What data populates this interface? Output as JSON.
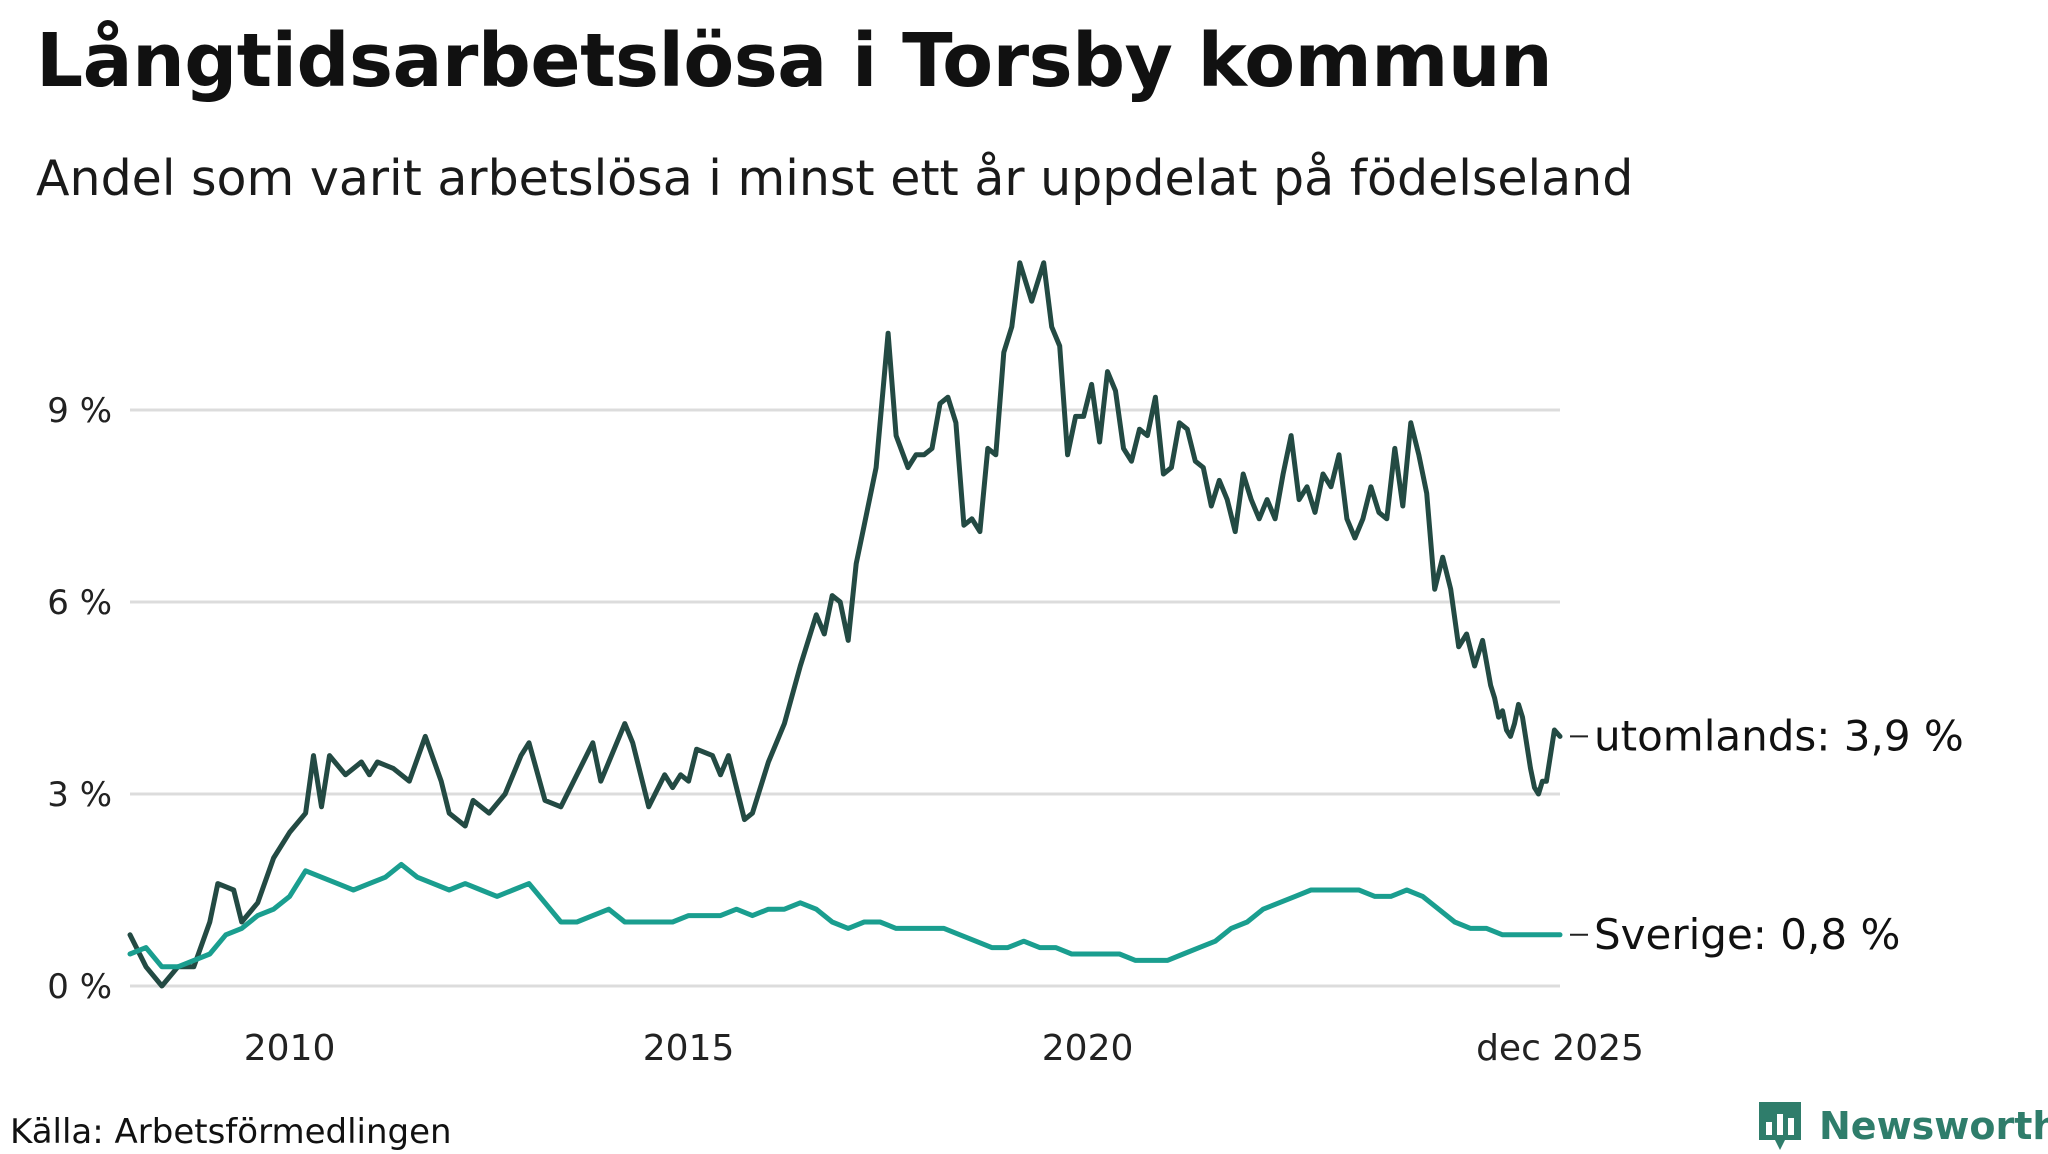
{
  "title": "Långtidsarbetslösa i Torsby kommun",
  "subtitle": "Andel som varit arbetslösa i minst ett år uppdelat på födelseland",
  "source": "Källa: Arbetsförmedlingen",
  "brand": "Newsworthy",
  "colors": {
    "utomlands": "#234a43",
    "sverige": "#1a9e8f",
    "grid": "#dcdcdc",
    "brand": "#2f7d6b"
  },
  "chart_data": {
    "type": "line",
    "title": "Långtidsarbetslösa i Torsby kommun",
    "ylabel": "",
    "xlabel": "",
    "ylim": [
      0,
      11.5
    ],
    "xlim": [
      2008.0,
      2025.92
    ],
    "y_ticks": [
      {
        "value": 0,
        "label": "0 %"
      },
      {
        "value": 3,
        "label": "3 %"
      },
      {
        "value": 6,
        "label": "6 %"
      },
      {
        "value": 9,
        "label": "9 %"
      }
    ],
    "x_ticks": [
      {
        "value": 2010,
        "label": "2010"
      },
      {
        "value": 2015,
        "label": "2015"
      },
      {
        "value": 2020,
        "label": "2020"
      },
      {
        "value": 2025.92,
        "label": "dec 2025"
      }
    ],
    "series": [
      {
        "name": "utomlands",
        "end_label": "utomlands: 3,9 %",
        "color": "#234a43",
        "points": [
          [
            2008.0,
            0.8
          ],
          [
            2008.2,
            0.3
          ],
          [
            2008.4,
            0.0
          ],
          [
            2008.6,
            0.3
          ],
          [
            2008.8,
            0.3
          ],
          [
            2009.0,
            1.0
          ],
          [
            2009.1,
            1.6
          ],
          [
            2009.3,
            1.5
          ],
          [
            2009.4,
            1.0
          ],
          [
            2009.6,
            1.3
          ],
          [
            2009.8,
            2.0
          ],
          [
            2010.0,
            2.4
          ],
          [
            2010.2,
            2.7
          ],
          [
            2010.3,
            3.6
          ],
          [
            2010.4,
            2.8
          ],
          [
            2010.5,
            3.6
          ],
          [
            2010.7,
            3.3
          ],
          [
            2010.9,
            3.5
          ],
          [
            2011.0,
            3.3
          ],
          [
            2011.1,
            3.5
          ],
          [
            2011.3,
            3.4
          ],
          [
            2011.5,
            3.2
          ],
          [
            2011.7,
            3.9
          ],
          [
            2011.9,
            3.2
          ],
          [
            2012.0,
            2.7
          ],
          [
            2012.2,
            2.5
          ],
          [
            2012.3,
            2.9
          ],
          [
            2012.5,
            2.7
          ],
          [
            2012.7,
            3.0
          ],
          [
            2012.9,
            3.6
          ],
          [
            2013.0,
            3.8
          ],
          [
            2013.2,
            2.9
          ],
          [
            2013.4,
            2.8
          ],
          [
            2013.6,
            3.3
          ],
          [
            2013.8,
            3.8
          ],
          [
            2013.9,
            3.2
          ],
          [
            2014.0,
            3.5
          ],
          [
            2014.2,
            4.1
          ],
          [
            2014.3,
            3.8
          ],
          [
            2014.5,
            2.8
          ],
          [
            2014.7,
            3.3
          ],
          [
            2014.8,
            3.1
          ],
          [
            2014.9,
            3.3
          ],
          [
            2015.0,
            3.2
          ],
          [
            2015.1,
            3.7
          ],
          [
            2015.3,
            3.6
          ],
          [
            2015.4,
            3.3
          ],
          [
            2015.5,
            3.6
          ],
          [
            2015.7,
            2.6
          ],
          [
            2015.8,
            2.7
          ],
          [
            2016.0,
            3.5
          ],
          [
            2016.2,
            4.1
          ],
          [
            2016.4,
            5.0
          ],
          [
            2016.6,
            5.8
          ],
          [
            2016.7,
            5.5
          ],
          [
            2016.8,
            6.1
          ],
          [
            2016.9,
            6.0
          ],
          [
            2017.0,
            5.4
          ],
          [
            2017.1,
            6.6
          ],
          [
            2017.2,
            7.2
          ],
          [
            2017.35,
            8.1
          ],
          [
            2017.5,
            10.2
          ],
          [
            2017.6,
            8.6
          ],
          [
            2017.75,
            8.1
          ],
          [
            2017.85,
            8.3
          ],
          [
            2017.95,
            8.3
          ],
          [
            2018.05,
            8.4
          ],
          [
            2018.15,
            9.1
          ],
          [
            2018.25,
            9.2
          ],
          [
            2018.35,
            8.8
          ],
          [
            2018.45,
            7.2
          ],
          [
            2018.55,
            7.3
          ],
          [
            2018.65,
            7.1
          ],
          [
            2018.75,
            8.4
          ],
          [
            2018.85,
            8.3
          ],
          [
            2018.95,
            9.9
          ],
          [
            2019.05,
            10.3
          ],
          [
            2019.15,
            11.3
          ],
          [
            2019.3,
            10.7
          ],
          [
            2019.45,
            11.3
          ],
          [
            2019.55,
            10.3
          ],
          [
            2019.65,
            10.0
          ],
          [
            2019.75,
            8.3
          ],
          [
            2019.85,
            8.9
          ],
          [
            2019.95,
            8.9
          ],
          [
            2020.05,
            9.4
          ],
          [
            2020.15,
            8.5
          ],
          [
            2020.25,
            9.6
          ],
          [
            2020.35,
            9.3
          ],
          [
            2020.45,
            8.4
          ],
          [
            2020.55,
            8.2
          ],
          [
            2020.65,
            8.7
          ],
          [
            2020.75,
            8.6
          ],
          [
            2020.85,
            9.2
          ],
          [
            2020.95,
            8.0
          ],
          [
            2021.05,
            8.1
          ],
          [
            2021.15,
            8.8
          ],
          [
            2021.25,
            8.7
          ],
          [
            2021.35,
            8.2
          ],
          [
            2021.45,
            8.1
          ],
          [
            2021.55,
            7.5
          ],
          [
            2021.65,
            7.9
          ],
          [
            2021.75,
            7.6
          ],
          [
            2021.85,
            7.1
          ],
          [
            2021.95,
            8.0
          ],
          [
            2022.05,
            7.6
          ],
          [
            2022.15,
            7.3
          ],
          [
            2022.25,
            7.6
          ],
          [
            2022.35,
            7.3
          ],
          [
            2022.45,
            8.0
          ],
          [
            2022.55,
            8.6
          ],
          [
            2022.65,
            7.6
          ],
          [
            2022.75,
            7.8
          ],
          [
            2022.85,
            7.4
          ],
          [
            2022.95,
            8.0
          ],
          [
            2023.05,
            7.8
          ],
          [
            2023.15,
            8.3
          ],
          [
            2023.25,
            7.3
          ],
          [
            2023.35,
            7.0
          ],
          [
            2023.45,
            7.3
          ],
          [
            2023.55,
            7.8
          ],
          [
            2023.65,
            7.4
          ],
          [
            2023.75,
            7.3
          ],
          [
            2023.85,
            8.4
          ],
          [
            2023.95,
            7.5
          ],
          [
            2024.05,
            8.8
          ],
          [
            2024.15,
            8.3
          ],
          [
            2024.25,
            7.7
          ],
          [
            2024.35,
            6.2
          ],
          [
            2024.45,
            6.7
          ],
          [
            2024.55,
            6.2
          ],
          [
            2024.65,
            5.3
          ],
          [
            2024.75,
            5.5
          ],
          [
            2024.85,
            5.0
          ],
          [
            2024.95,
            5.4
          ],
          [
            2025.05,
            4.7
          ],
          [
            2025.1,
            4.5
          ],
          [
            2025.15,
            4.2
          ],
          [
            2025.2,
            4.3
          ],
          [
            2025.25,
            4.0
          ],
          [
            2025.3,
            3.9
          ],
          [
            2025.35,
            4.1
          ],
          [
            2025.4,
            4.4
          ],
          [
            2025.45,
            4.2
          ],
          [
            2025.5,
            3.8
          ],
          [
            2025.55,
            3.4
          ],
          [
            2025.6,
            3.1
          ],
          [
            2025.65,
            3.0
          ],
          [
            2025.7,
            3.2
          ],
          [
            2025.75,
            3.2
          ],
          [
            2025.8,
            3.6
          ],
          [
            2025.85,
            4.0
          ],
          [
            2025.92,
            3.9
          ]
        ]
      },
      {
        "name": "Sverige",
        "end_label": "Sverige: 0,8 %",
        "color": "#1a9e8f",
        "points": [
          [
            2008.0,
            0.5
          ],
          [
            2008.2,
            0.6
          ],
          [
            2008.4,
            0.3
          ],
          [
            2008.6,
            0.3
          ],
          [
            2008.8,
            0.4
          ],
          [
            2009.0,
            0.5
          ],
          [
            2009.2,
            0.8
          ],
          [
            2009.4,
            0.9
          ],
          [
            2009.6,
            1.1
          ],
          [
            2009.8,
            1.2
          ],
          [
            2010.0,
            1.4
          ],
          [
            2010.2,
            1.8
          ],
          [
            2010.4,
            1.7
          ],
          [
            2010.6,
            1.6
          ],
          [
            2010.8,
            1.5
          ],
          [
            2011.0,
            1.6
          ],
          [
            2011.2,
            1.7
          ],
          [
            2011.4,
            1.9
          ],
          [
            2011.6,
            1.7
          ],
          [
            2011.8,
            1.6
          ],
          [
            2012.0,
            1.5
          ],
          [
            2012.2,
            1.6
          ],
          [
            2012.4,
            1.5
          ],
          [
            2012.6,
            1.4
          ],
          [
            2012.8,
            1.5
          ],
          [
            2013.0,
            1.6
          ],
          [
            2013.2,
            1.3
          ],
          [
            2013.4,
            1.0
          ],
          [
            2013.6,
            1.0
          ],
          [
            2013.8,
            1.1
          ],
          [
            2014.0,
            1.2
          ],
          [
            2014.2,
            1.0
          ],
          [
            2014.4,
            1.0
          ],
          [
            2014.6,
            1.0
          ],
          [
            2014.8,
            1.0
          ],
          [
            2015.0,
            1.1
          ],
          [
            2015.2,
            1.1
          ],
          [
            2015.4,
            1.1
          ],
          [
            2015.6,
            1.2
          ],
          [
            2015.8,
            1.1
          ],
          [
            2016.0,
            1.2
          ],
          [
            2016.2,
            1.2
          ],
          [
            2016.4,
            1.3
          ],
          [
            2016.6,
            1.2
          ],
          [
            2016.8,
            1.0
          ],
          [
            2017.0,
            0.9
          ],
          [
            2017.2,
            1.0
          ],
          [
            2017.4,
            1.0
          ],
          [
            2017.6,
            0.9
          ],
          [
            2017.8,
            0.9
          ],
          [
            2018.0,
            0.9
          ],
          [
            2018.2,
            0.9
          ],
          [
            2018.4,
            0.8
          ],
          [
            2018.6,
            0.7
          ],
          [
            2018.8,
            0.6
          ],
          [
            2019.0,
            0.6
          ],
          [
            2019.2,
            0.7
          ],
          [
            2019.4,
            0.6
          ],
          [
            2019.6,
            0.6
          ],
          [
            2019.8,
            0.5
          ],
          [
            2020.0,
            0.5
          ],
          [
            2020.2,
            0.5
          ],
          [
            2020.4,
            0.5
          ],
          [
            2020.6,
            0.4
          ],
          [
            2020.8,
            0.4
          ],
          [
            2021.0,
            0.4
          ],
          [
            2021.2,
            0.5
          ],
          [
            2021.4,
            0.6
          ],
          [
            2021.6,
            0.7
          ],
          [
            2021.8,
            0.9
          ],
          [
            2022.0,
            1.0
          ],
          [
            2022.2,
            1.2
          ],
          [
            2022.4,
            1.3
          ],
          [
            2022.6,
            1.4
          ],
          [
            2022.8,
            1.5
          ],
          [
            2023.0,
            1.5
          ],
          [
            2023.2,
            1.5
          ],
          [
            2023.4,
            1.5
          ],
          [
            2023.6,
            1.4
          ],
          [
            2023.8,
            1.4
          ],
          [
            2024.0,
            1.5
          ],
          [
            2024.2,
            1.4
          ],
          [
            2024.4,
            1.2
          ],
          [
            2024.6,
            1.0
          ],
          [
            2024.8,
            0.9
          ],
          [
            2025.0,
            0.9
          ],
          [
            2025.2,
            0.8
          ],
          [
            2025.4,
            0.8
          ],
          [
            2025.6,
            0.8
          ],
          [
            2025.8,
            0.8
          ],
          [
            2025.92,
            0.8
          ]
        ]
      }
    ]
  }
}
